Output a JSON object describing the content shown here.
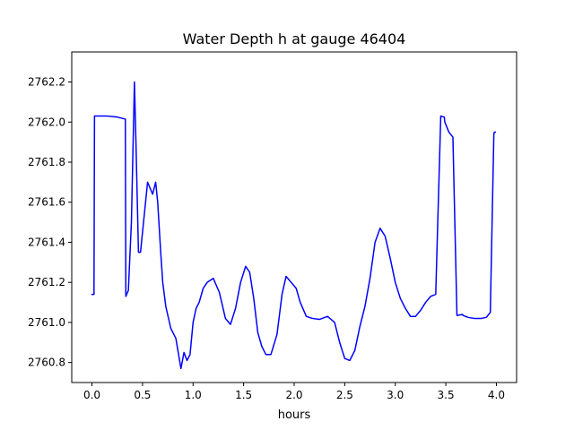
{
  "chart_data": {
    "type": "line",
    "title": "Water Depth h at gauge 46404",
    "xlabel": "hours",
    "ylabel": "",
    "xlim": [
      -0.2,
      4.2
    ],
    "ylim": [
      2760.7,
      2762.35
    ],
    "x_ticks": [
      0.0,
      0.5,
      1.0,
      1.5,
      2.0,
      2.5,
      3.0,
      3.5,
      4.0
    ],
    "x_tick_labels": [
      "0.0",
      "0.5",
      "1.0",
      "1.5",
      "2.0",
      "2.5",
      "3.0",
      "3.5",
      "4.0"
    ],
    "y_ticks": [
      2760.8,
      2761.0,
      2761.2,
      2761.4,
      2761.6,
      2761.8,
      2762.0,
      2762.2
    ],
    "y_tick_labels": [
      "2760.8",
      "2761.0",
      "2761.2",
      "2761.4",
      "2761.6",
      "2761.8",
      "2762.0",
      "2762.2"
    ],
    "grid": false,
    "series": [
      {
        "color": "#0000ff",
        "x": [
          0.0,
          0.02,
          0.025,
          0.15,
          0.25,
          0.33,
          0.335,
          0.36,
          0.39,
          0.42,
          0.435,
          0.46,
          0.48,
          0.51,
          0.55,
          0.6,
          0.63,
          0.65,
          0.68,
          0.7,
          0.73,
          0.78,
          0.83,
          0.88,
          0.91,
          0.94,
          0.97,
          1.0,
          1.03,
          1.06,
          1.1,
          1.14,
          1.2,
          1.26,
          1.32,
          1.37,
          1.42,
          1.47,
          1.52,
          1.56,
          1.6,
          1.64,
          1.68,
          1.72,
          1.77,
          1.83,
          1.88,
          1.92,
          1.97,
          2.02,
          2.06,
          2.12,
          2.18,
          2.25,
          2.33,
          2.4,
          2.45,
          2.5,
          2.55,
          2.6,
          2.65,
          2.7,
          2.75,
          2.8,
          2.85,
          2.9,
          2.95,
          3.0,
          3.05,
          3.1,
          3.15,
          3.2,
          3.25,
          3.3,
          3.35,
          3.4,
          3.45,
          3.485,
          3.49,
          3.53,
          3.57,
          3.61,
          3.665,
          3.67,
          3.72,
          3.78,
          3.85,
          3.9,
          3.94,
          3.975,
          3.98,
          3.99
        ],
        "y": [
          2761.14,
          2761.14,
          2762.03,
          2762.03,
          2762.025,
          2762.015,
          2761.13,
          2761.16,
          2761.5,
          2762.2,
          2761.9,
          2761.35,
          2761.35,
          2761.5,
          2761.7,
          2761.64,
          2761.7,
          2761.6,
          2761.35,
          2761.2,
          2761.08,
          2760.97,
          2760.92,
          2760.77,
          2760.85,
          2760.81,
          2760.84,
          2761.0,
          2761.07,
          2761.1,
          2761.17,
          2761.2,
          2761.22,
          2761.15,
          2761.02,
          2760.99,
          2761.07,
          2761.2,
          2761.28,
          2761.25,
          2761.12,
          2760.95,
          2760.88,
          2760.84,
          2760.84,
          2760.94,
          2761.14,
          2761.23,
          2761.2,
          2761.17,
          2761.1,
          2761.03,
          2761.02,
          2761.015,
          2761.03,
          2761.0,
          2760.9,
          2760.82,
          2760.81,
          2760.86,
          2760.98,
          2761.08,
          2761.22,
          2761.4,
          2761.47,
          2761.43,
          2761.32,
          2761.2,
          2761.12,
          2761.07,
          2761.03,
          2761.03,
          2761.06,
          2761.1,
          2761.13,
          2761.14,
          2762.03,
          2762.025,
          2762.0,
          2761.95,
          2761.925,
          2761.035,
          2761.04,
          2761.035,
          2761.025,
          2761.02,
          2761.02,
          2761.025,
          2761.05,
          2761.94,
          2761.95,
          2761.95
        ]
      }
    ]
  }
}
